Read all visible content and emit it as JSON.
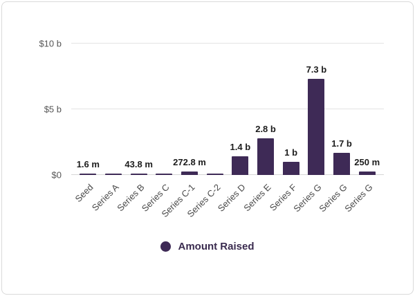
{
  "legend": {
    "label": "Amount Raised"
  },
  "colors": {
    "bar": "#3e2a56",
    "grid": "#e3e3e3",
    "value_label": "#1c1c1c",
    "tick_label": "#555555",
    "legend_text": "#3a2b4f"
  },
  "chart_data": {
    "type": "bar",
    "title": "",
    "xlabel": "",
    "ylabel": "",
    "categories": [
      "Seed",
      "Series A",
      "Series B",
      "Series C",
      "Series C-1",
      "Series C-2",
      "Series D",
      "Series E",
      "Series F",
      "Series G",
      "Series G",
      "Series G"
    ],
    "values": [
      0.0016,
      0.02,
      0.0438,
      0.02,
      0.2728,
      0.02,
      1.4,
      2.8,
      1.0,
      7.3,
      1.7,
      0.25
    ],
    "value_labels": [
      "1.6 m",
      "",
      "43.8 m",
      "",
      "272.8 m",
      "",
      "1.4 b",
      "2.8 b",
      "1 b",
      "7.3 b",
      "1.7 b",
      "250 m"
    ],
    "unit_note": "values in billions of dollars as read from axis",
    "ylim": [
      0,
      10
    ],
    "yticks": [
      {
        "value": 0,
        "label": "$0"
      },
      {
        "value": 5,
        "label": "$5 b"
      },
      {
        "value": 10,
        "label": "$10 b"
      }
    ],
    "grid": true,
    "legend_entries": [
      "Amount Raised"
    ],
    "legend_position": "bottom"
  }
}
